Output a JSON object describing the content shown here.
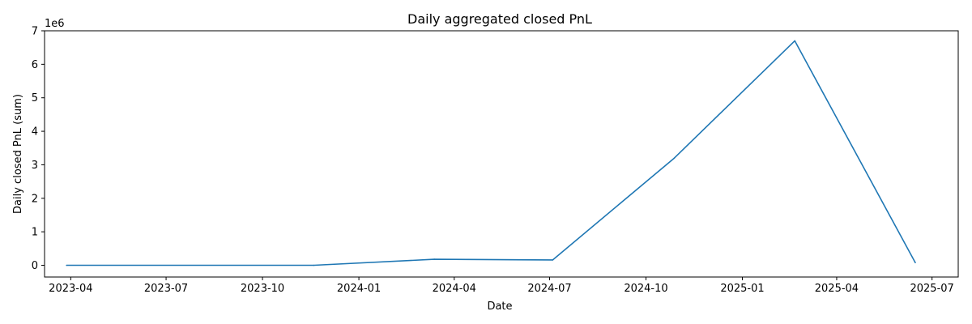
{
  "chart_data": {
    "type": "line",
    "title": "Daily aggregated closed PnL",
    "xlabel": "Date",
    "ylabel": "Daily closed PnL (sum)",
    "y_offset_label": "1e6",
    "y_scale": 1000000,
    "xlim": [
      "2023-03-07",
      "2025-07-26"
    ],
    "ylim": [
      -350000,
      7000000
    ],
    "grid": false,
    "x_ticks": [
      {
        "date": "2023-04-01",
        "label": "2023-04"
      },
      {
        "date": "2023-07-01",
        "label": "2023-07"
      },
      {
        "date": "2023-10-01",
        "label": "2023-10"
      },
      {
        "date": "2024-01-01",
        "label": "2024-01"
      },
      {
        "date": "2024-04-01",
        "label": "2024-04"
      },
      {
        "date": "2024-07-01",
        "label": "2024-07"
      },
      {
        "date": "2024-10-01",
        "label": "2024-10"
      },
      {
        "date": "2025-01-01",
        "label": "2025-01"
      },
      {
        "date": "2025-04-01",
        "label": "2025-04"
      },
      {
        "date": "2025-07-01",
        "label": "2025-07"
      }
    ],
    "y_ticks": [
      {
        "value": 0,
        "label": "0"
      },
      {
        "value": 1000000,
        "label": "1"
      },
      {
        "value": 2000000,
        "label": "2"
      },
      {
        "value": 3000000,
        "label": "3"
      },
      {
        "value": 4000000,
        "label": "4"
      },
      {
        "value": 5000000,
        "label": "5"
      },
      {
        "value": 6000000,
        "label": "6"
      },
      {
        "value": 7000000,
        "label": "7"
      }
    ],
    "series": [
      {
        "color": "#1f77b4",
        "points": [
          {
            "x": "2023-03-28",
            "y": 0
          },
          {
            "x": "2023-11-19",
            "y": 0
          },
          {
            "x": "2024-03-13",
            "y": 180000
          },
          {
            "x": "2024-07-04",
            "y": 160000
          },
          {
            "x": "2024-10-28",
            "y": 3200000
          },
          {
            "x": "2025-02-20",
            "y": 6700000
          },
          {
            "x": "2025-06-15",
            "y": 80000
          }
        ]
      }
    ]
  }
}
